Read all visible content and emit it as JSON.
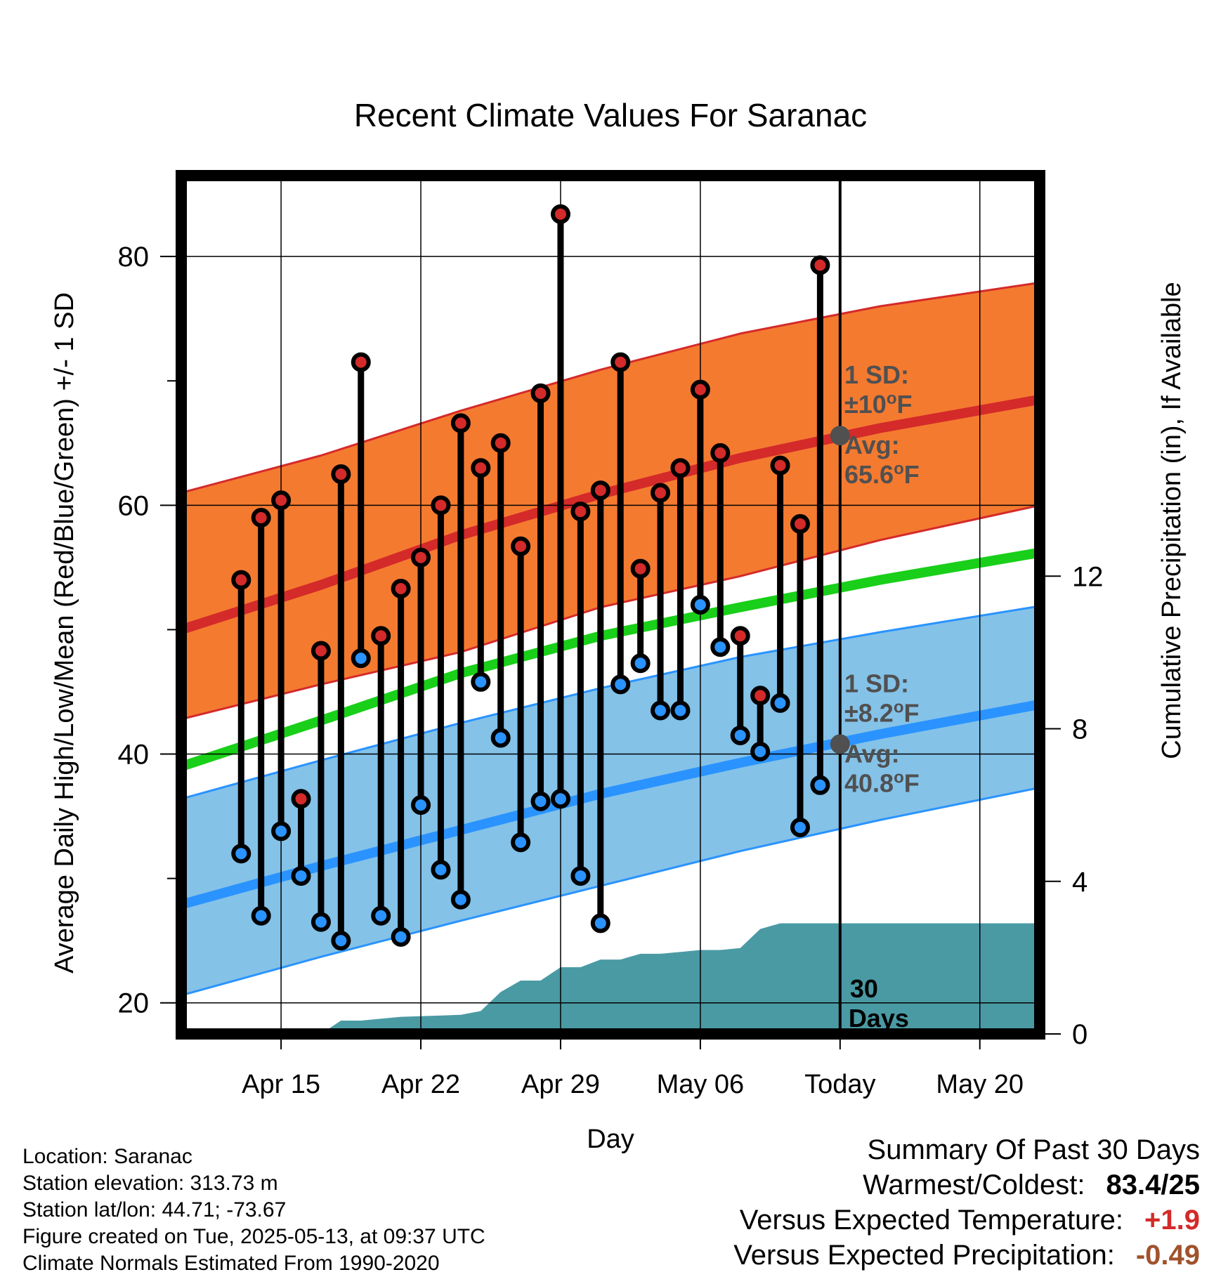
{
  "chart_data": {
    "type": "line",
    "title": "Recent Climate Values For Saranac",
    "xlabel": "Day",
    "ylabel": "Average Daily High/Low/Mean (Red/Blue/Green) +/- 1 SD",
    "y2label": "Cumulative Precipitation (in), If Available",
    "xlim": [
      "2025-04-10",
      "2025-05-23"
    ],
    "ylim": [
      17.5,
      86.5
    ],
    "y2lim": [
      0,
      22.5
    ],
    "x_tick_labels": [
      {
        "date": "2025-04-15",
        "label": "Apr 15"
      },
      {
        "date": "2025-04-22",
        "label": "Apr 22"
      },
      {
        "date": "2025-04-29",
        "label": "Apr 29"
      },
      {
        "date": "2025-05-06",
        "label": "May 06"
      },
      {
        "date": "2025-05-13",
        "label": "Today"
      },
      {
        "date": "2025-05-20",
        "label": "May 20"
      }
    ],
    "y_ticks": [
      20,
      40,
      60,
      80
    ],
    "y2_ticks": [
      0,
      4,
      8,
      12
    ],
    "grid": true,
    "daily": {
      "dates": [
        "2025-04-13",
        "2025-04-14",
        "2025-04-15",
        "2025-04-16",
        "2025-04-17",
        "2025-04-18",
        "2025-04-19",
        "2025-04-20",
        "2025-04-21",
        "2025-04-22",
        "2025-04-23",
        "2025-04-24",
        "2025-04-25",
        "2025-04-26",
        "2025-04-27",
        "2025-04-28",
        "2025-04-29",
        "2025-04-30",
        "2025-05-01",
        "2025-05-02",
        "2025-05-03",
        "2025-05-04",
        "2025-05-05",
        "2025-05-06",
        "2025-05-07",
        "2025-05-08",
        "2025-05-09",
        "2025-05-10",
        "2025-05-11",
        "2025-05-12"
      ],
      "high": [
        54,
        59,
        60.4,
        36.4,
        48.3,
        62.5,
        71.5,
        49.5,
        53.3,
        55.8,
        60,
        66.6,
        63,
        65,
        56.7,
        69,
        83.4,
        59.5,
        61.2,
        71.5,
        54.9,
        61,
        63,
        69.3,
        64.2,
        49.5,
        44.7,
        63.2,
        58.5,
        79.3
      ],
      "low": [
        32,
        27,
        33.8,
        30.2,
        26.5,
        25,
        47.7,
        27,
        25.3,
        35.9,
        30.7,
        28.3,
        45.8,
        41.3,
        32.9,
        36.2,
        36.4,
        30.2,
        26.4,
        45.6,
        47.3,
        43.5,
        43.5,
        52,
        48.6,
        41.5,
        40.2,
        44.1,
        34.1,
        37.5
      ]
    },
    "normals": {
      "dates": [
        "2025-04-10",
        "2025-04-17",
        "2025-04-24",
        "2025-05-01",
        "2025-05-08",
        "2025-05-15",
        "2025-05-23"
      ],
      "high_avg": [
        50,
        53.6,
        57.6,
        60.9,
        63.8,
        66.2,
        68.5
      ],
      "high_upper": [
        61,
        64,
        67.6,
        70.9,
        73.8,
        76,
        77.9
      ],
      "high_lower": [
        42.8,
        45.6,
        48.2,
        51.8,
        54.3,
        57.2,
        60
      ],
      "mean_avg": [
        39,
        42.7,
        46.5,
        49.5,
        51.8,
        54,
        56.2
      ],
      "low_avg": [
        27.9,
        31,
        33.9,
        36.8,
        39.3,
        41.6,
        44
      ],
      "low_upper": [
        36.4,
        39.5,
        42.5,
        45.3,
        47.8,
        49.8,
        51.9
      ],
      "low_lower": [
        20.6,
        23.7,
        26.6,
        29.4,
        32.2,
        34.7,
        37.3
      ]
    },
    "precip": {
      "dates": [
        "2025-04-10",
        "2025-04-16",
        "2025-04-17",
        "2025-04-18",
        "2025-04-19",
        "2025-04-21",
        "2025-04-24",
        "2025-04-25",
        "2025-04-26",
        "2025-04-27",
        "2025-04-28",
        "2025-04-29",
        "2025-04-30",
        "2025-05-01",
        "2025-05-02",
        "2025-05-03",
        "2025-05-04",
        "2025-05-05",
        "2025-05-06",
        "2025-05-07",
        "2025-05-08",
        "2025-05-09",
        "2025-05-10",
        "2025-05-23"
      ],
      "cumulative": [
        0,
        0,
        0,
        0.35,
        0.35,
        0.45,
        0.5,
        0.6,
        1.1,
        1.4,
        1.4,
        1.75,
        1.75,
        1.95,
        1.95,
        2.1,
        2.1,
        2.15,
        2.2,
        2.2,
        2.25,
        2.75,
        2.9,
        2.9
      ]
    },
    "annotations": {
      "high_sd": "1 SD: ±10°F",
      "high_avg": "Avg: 65.6°F",
      "low_sd": "1 SD: ±8.2°F",
      "low_avg": "Avg: 40.8°F",
      "window": "30 Days",
      "today_high_avg": 65.6,
      "today_low_avg": 40.8
    },
    "colors": {
      "high_band": "#f47a30",
      "high_line": "#d42a2a",
      "mean_line": "#19cf19",
      "low_band": "#84c2e8",
      "low_line": "#2a93ff",
      "precip": "#4a9aa4",
      "high_dot": "#d42a2a",
      "low_dot": "#2a93ff",
      "annotation": "#505050"
    }
  },
  "annotation_text": {
    "sd_label": "1 SD:",
    "high_sd_value": "±10",
    "low_sd_value": "±8.2",
    "avg_label": "Avg:",
    "high_avg_value": "65.6",
    "low_avg_value": "40.8",
    "deg_unit": "o",
    "f_unit": "F",
    "window_number": "30",
    "window_unit": "Days"
  },
  "metadata": {
    "location": "Location: Saranac",
    "elevation": "Station elevation: 313.73 m",
    "latlon": "Station lat/lon: 44.71; -73.67",
    "created": "Figure created on Tue, 2025-05-13, at 09:37 UTC",
    "normals": "Climate Normals Estimated From 1990-2020"
  },
  "summary": {
    "title": "Summary Of Past 30 Days",
    "warmest_label": "Warmest/Coldest:",
    "warmest_value": "83.4/25",
    "temp_label": "Versus Expected Temperature:",
    "temp_value": "+1.9",
    "temp_color": "#d42a2a",
    "precip_label": "Versus Expected Precipitation:",
    "precip_value": "-0.49",
    "precip_color": "#a0522d"
  }
}
